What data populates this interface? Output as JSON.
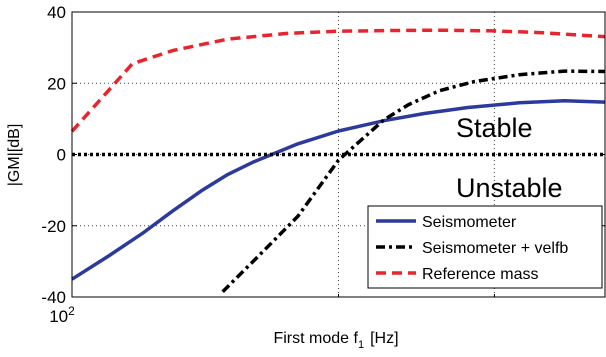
{
  "chart_data": {
    "type": "line",
    "title": "",
    "xlabel": "First mode f",
    "xlabel_sub": "1",
    "xlabel_unit": "[Hz]",
    "ylabel": "|GM|[dB]",
    "x_scale": "log",
    "xlim": [
      100,
      400
    ],
    "ylim": [
      -40,
      40
    ],
    "x_ticks": [
      {
        "value": 100,
        "base": "10",
        "exp": "2"
      }
    ],
    "y_ticks": [
      -40,
      -20,
      0,
      20,
      40
    ],
    "grid": true,
    "legend_position": "bottom-right",
    "annotations": {
      "stable": "Stable",
      "unstable": "Unstable"
    },
    "series": [
      {
        "name": "Seismometer",
        "color": "#2b3a9c",
        "style": "solid",
        "x": [
          100,
          110,
          120,
          130,
          140,
          150,
          160,
          180,
          200,
          225,
          250,
          280,
          320,
          360,
          400
        ],
        "y": [
          -35,
          -28.5,
          -22.2,
          -15.8,
          -10.2,
          -5.6,
          -2.2,
          3,
          6.6,
          9.5,
          11.5,
          13.2,
          14.5,
          15.1,
          14.7
        ]
      },
      {
        "name": "Seismometer + velfb",
        "color": "#000000",
        "style": "dashdot",
        "x": [
          148,
          165,
          180,
          200,
          225,
          240,
          260,
          285,
          320,
          360,
          400
        ],
        "y": [
          -38.5,
          -26.8,
          -17.3,
          -1.6,
          9.7,
          14,
          17.9,
          20.5,
          22.4,
          23.4,
          23.3
        ]
      },
      {
        "name": "Reference mass",
        "color": "#e8252d",
        "style": "dashed",
        "x": [
          100,
          110,
          117,
          130,
          150,
          175,
          200,
          230,
          260,
          300,
          340,
          380,
          400
        ],
        "y": [
          6.5,
          18,
          25.5,
          29.2,
          32.4,
          34,
          34.6,
          34.8,
          34.9,
          34.7,
          34.2,
          33.4,
          33.1
        ]
      },
      {
        "name": "",
        "color": "#000000",
        "style": "dotted",
        "x": [
          100,
          400
        ],
        "y": [
          0,
          0
        ]
      }
    ]
  }
}
